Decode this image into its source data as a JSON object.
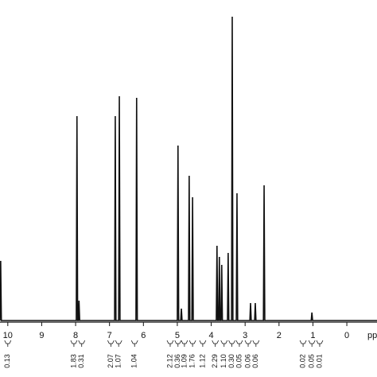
{
  "chart_data": {
    "type": "line",
    "x_label": "ppm",
    "xlim": [
      10.23,
      -0.89
    ],
    "ylim": [
      0,
      403
    ],
    "xticks": [
      10,
      9,
      8,
      7,
      6,
      5,
      4,
      3,
      2,
      1,
      0
    ],
    "color": "#111111",
    "x": [
      10.23,
      10.21,
      10.19,
      7.98,
      7.96,
      7.94,
      7.92,
      7.9,
      7.88,
      6.85,
      6.83,
      6.81,
      6.73,
      6.71,
      6.69,
      6.22,
      6.2,
      6.18,
      5.0,
      4.98,
      4.96,
      4.9,
      4.88,
      4.86,
      4.67,
      4.65,
      4.63,
      4.57,
      4.55,
      4.53,
      3.85,
      3.83,
      3.81,
      3.78,
      3.76,
      3.74,
      3.71,
      3.69,
      3.67,
      3.52,
      3.5,
      3.48,
      3.4,
      3.38,
      3.36,
      3.26,
      3.24,
      3.22,
      2.86,
      2.84,
      2.82,
      2.72,
      2.7,
      2.68,
      2.46,
      2.44,
      2.42,
      1.05,
      1.03,
      1.01,
      -0.89
    ],
    "values": [
      0,
      75,
      0,
      0,
      257,
      0,
      0,
      25,
      0,
      0,
      257,
      0,
      0,
      282,
      0,
      0,
      280,
      0,
      0,
      220,
      0,
      0,
      15,
      0,
      0,
      182,
      0,
      0,
      155,
      0,
      0,
      94,
      0,
      0,
      80,
      0,
      0,
      70,
      0,
      0,
      85,
      0,
      0,
      382,
      0,
      0,
      160,
      0,
      0,
      22,
      0,
      0,
      22,
      0,
      0,
      170,
      0,
      0,
      10,
      0,
      0
    ],
    "integrals": [
      {
        "x": 10.0,
        "label": "0.13"
      },
      {
        "x": 8.05,
        "label": "1.83"
      },
      {
        "x": 7.82,
        "label": "0.31"
      },
      {
        "x": 6.96,
        "label": "2.07"
      },
      {
        "x": 6.73,
        "label": "1.07"
      },
      {
        "x": 6.26,
        "label": "1.04"
      },
      {
        "x": 5.21,
        "label": "2.12"
      },
      {
        "x": 4.98,
        "label": "0.36"
      },
      {
        "x": 4.79,
        "label": "1.09"
      },
      {
        "x": 4.55,
        "label": "1.76"
      },
      {
        "x": 4.25,
        "label": "1.12"
      },
      {
        "x": 3.88,
        "label": "2.29"
      },
      {
        "x": 3.62,
        "label": "1.10"
      },
      {
        "x": 3.39,
        "label": "0.30"
      },
      {
        "x": 3.17,
        "label": "0.05"
      },
      {
        "x": 2.91,
        "label": "0.06"
      },
      {
        "x": 2.68,
        "label": "0.06"
      },
      {
        "x": 1.29,
        "label": "0.02"
      },
      {
        "x": 1.03,
        "label": "0.05"
      },
      {
        "x": 0.8,
        "label": "0.01"
      }
    ]
  }
}
